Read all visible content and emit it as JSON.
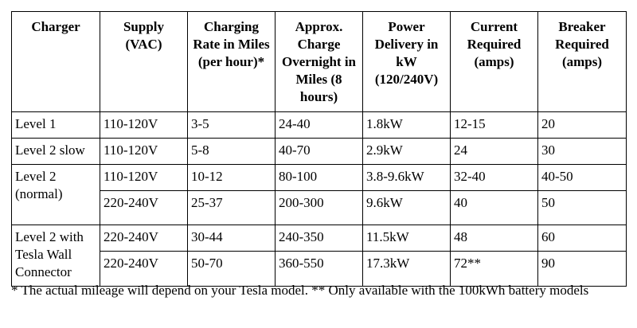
{
  "table": {
    "header": [
      "Charger",
      "Supply (VAC)",
      "Charging Rate in Miles (per hour)*",
      "Approx. Charge Overnight in Miles (8 hours)",
      "Power Delivery in kW (120/240V)",
      "Current Required (amps)",
      "Breaker Required (amps)"
    ],
    "groups": [
      {
        "charger": "Level 1",
        "rows": [
          [
            "110-120V",
            "3-5",
            "24-40",
            "1.8kW",
            "12-15",
            "20"
          ]
        ]
      },
      {
        "charger": "Level 2 slow",
        "rows": [
          [
            "110-120V",
            "5-8",
            "40-70",
            "2.9kW",
            "24",
            "30"
          ]
        ]
      },
      {
        "charger": "Level 2 (normal)",
        "rows": [
          [
            "110-120V",
            "10-12",
            "80-100",
            "3.8-9.6kW",
            "32-40",
            "40-50"
          ],
          [
            "220-240V",
            "25-37",
            "200-300",
            "9.6kW",
            "40",
            "50"
          ]
        ]
      },
      {
        "charger": "Level 2 with Tesla Wall Connector",
        "rows": [
          [
            "220-240V",
            "30-44",
            "240-350",
            "11.5kW",
            "48",
            "60"
          ],
          [
            "220-240V",
            "50-70",
            "360-550",
            "17.3kW",
            "72**",
            "90"
          ]
        ]
      }
    ]
  },
  "footnote": "* The actual mileage will depend on your Tesla model. ** Only available with the 100kWh battery models"
}
